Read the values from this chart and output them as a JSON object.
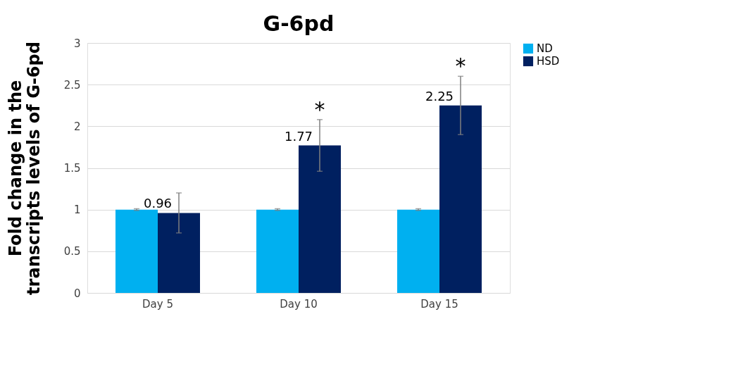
{
  "chart_data": {
    "type": "bar",
    "title": "G-6pd",
    "ylabel": "Fold change in the\ntranscripts levels of G-6pd",
    "categories": [
      "Day 5",
      "Day 10",
      "Day 15"
    ],
    "series": [
      {
        "name": "ND",
        "color": "#00b0f0",
        "values": [
          1,
          1,
          1
        ],
        "errors": [
          0.01,
          0.01,
          0.01
        ]
      },
      {
        "name": "HSD",
        "color": "#002060",
        "values": [
          0.96,
          1.77,
          2.25
        ],
        "errors": [
          0.24,
          0.31,
          0.35
        ],
        "value_labels": [
          "0.96",
          "1.77",
          "2.25"
        ]
      }
    ],
    "ylim": [
      0,
      3
    ],
    "yticks": [
      0,
      0.5,
      1,
      1.5,
      2,
      2.5,
      3
    ],
    "grid": "y",
    "legend": "right",
    "annotations": [
      "*",
      "*"
    ]
  }
}
